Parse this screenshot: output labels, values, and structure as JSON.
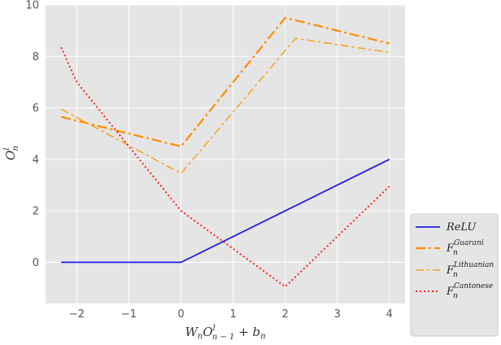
{
  "chart_data": {
    "type": "line",
    "xlabel": "W_n O^l_{n-1} + b_n",
    "ylabel": "O^l_n",
    "xlim": [
      -2.6,
      4.3
    ],
    "ylim": [
      -1.6,
      10
    ],
    "xticks": [
      -2,
      -1,
      0,
      1,
      2,
      3,
      4
    ],
    "yticks": [
      0,
      2,
      4,
      6,
      8,
      10
    ],
    "xtick_labels": [
      "−2",
      "−1",
      "0",
      "1",
      "2",
      "3",
      "4"
    ],
    "ytick_labels": [
      "0",
      "2",
      "4",
      "6",
      "8",
      "10"
    ],
    "grid": true,
    "background": "#e5e5e5",
    "legend_position": "lower-right-outside",
    "series": [
      {
        "key": "relu",
        "name": "ReLU",
        "color": "#1f1fe0",
        "dash": "solid",
        "x": [
          -2.3,
          0,
          4
        ],
        "y": [
          0,
          0,
          4
        ]
      },
      {
        "key": "guarani",
        "name": "F_n^Guarani",
        "color": "#ff8c00",
        "dash": "dashdot",
        "x": [
          -2.3,
          0,
          2,
          4
        ],
        "y": [
          5.65,
          4.5,
          9.5,
          8.5
        ]
      },
      {
        "key": "lithuanian",
        "name": "F_n^Lithuanian",
        "color": "#f5a623",
        "dash": "dashdot-thin",
        "x": [
          -2.3,
          0,
          2.2,
          4
        ],
        "y": [
          5.95,
          3.45,
          8.7,
          8.15
        ]
      },
      {
        "key": "cantonese",
        "name": "F_n^Cantonese",
        "color": "#ff2020",
        "dash": "dotted",
        "x": [
          -2.3,
          -2,
          0,
          2,
          4
        ],
        "y": [
          8.35,
          7.0,
          2.0,
          -0.95,
          2.95
        ]
      }
    ],
    "legend": {
      "relu": "ReLU",
      "guarani_base": "F",
      "guarani_sub": "n",
      "guarani_sup": "Guarani",
      "lithuanian_base": "F",
      "lithuanian_sub": "n",
      "lithuanian_sup": "Lithuanian",
      "cantonese_base": "F",
      "cantonese_sub": "n",
      "cantonese_sup": "Cantonese"
    },
    "axis_text": {
      "x_main": "W",
      "x_n1": "n",
      "x_O": "O",
      "x_l": "l",
      "x_sub": "n − 1",
      "x_rest": " + b",
      "x_bn": "n",
      "y_O": "O",
      "y_l": "l",
      "y_n": "n"
    }
  }
}
